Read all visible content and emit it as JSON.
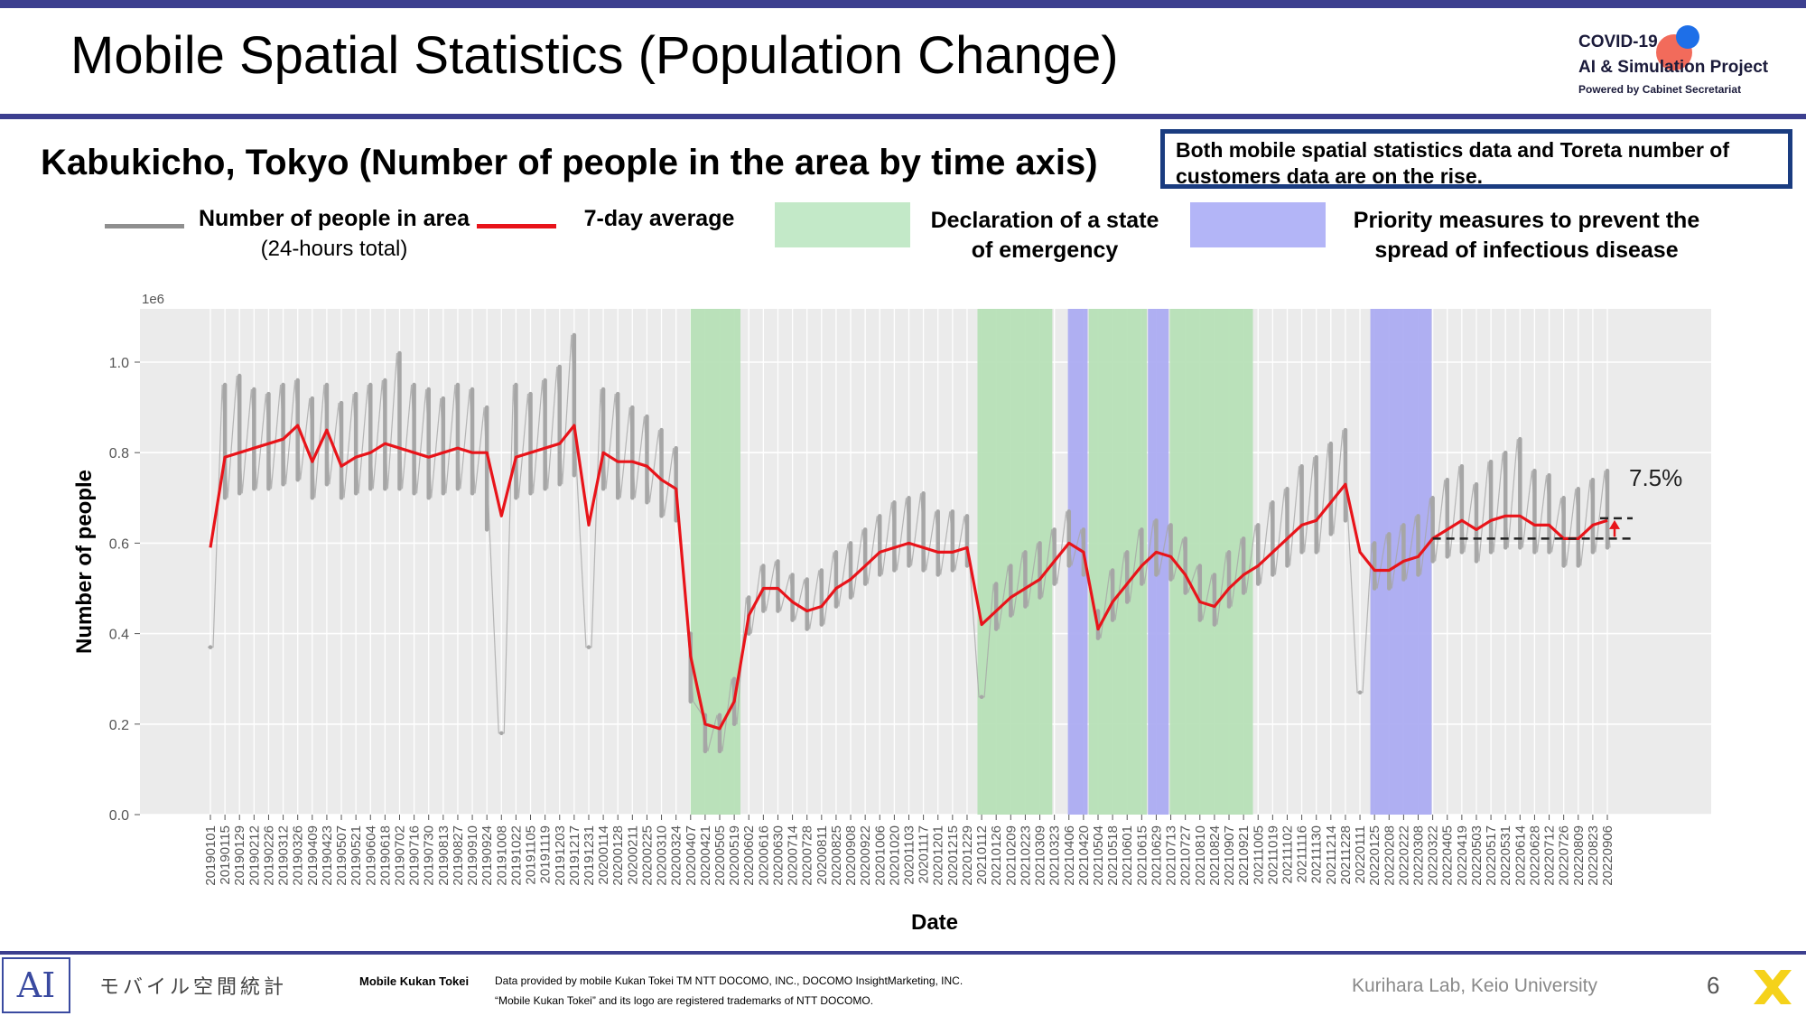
{
  "slide": {
    "title": "Mobile Spatial Statistics (Population Change)",
    "subtitle": "Kabukicho, Tokyo (Number of people in the area by time axis)",
    "callout": "Both mobile spatial statistics data and Toreta number of customers data are on the rise.",
    "page_number": "6",
    "credit": "Kurihara Lab, Keio University"
  },
  "logo": {
    "line1": "COVID-19",
    "line2": "AI & Simulation Project",
    "line3": "Powered by Cabinet Secretariat"
  },
  "legend": {
    "raw_label": "Number of people in area",
    "raw_sub": "(24-hours total)",
    "avg_label": "7-day average",
    "emergency_line1": "Declaration of a state",
    "emergency_line2": "of emergency",
    "priority_line1": "Priority measures to prevent the",
    "priority_line2": "spread of infectious disease"
  },
  "footer": {
    "jp_logo": "モバイル空間統計",
    "brand": "Mobile Kukan Tokei",
    "note1": "Data provided by mobile Kukan Tokei TM NTT DOCOMO, INC., DOCOMO InsightMarketing, INC.",
    "note2": "“Mobile Kukan Tokei” and its logo are registered trademarks of NTT DOCOMO.",
    "ai_mark": "AI"
  },
  "colors": {
    "raw": "#a6a6a6",
    "avg": "#e8141a",
    "emergency": "#b5dfb5",
    "priority": "#a9a9f2",
    "plot_bg": "#ebebeb",
    "accent": "#3c3f8f"
  },
  "chart_data": {
    "type": "line",
    "xlabel": "Date",
    "ylabel": "Number of people",
    "y_multiplier": "1e6",
    "ylim": [
      0,
      1.1
    ],
    "yticks": [
      "0.0",
      "0.2",
      "0.4",
      "0.6",
      "0.8",
      "1.0"
    ],
    "xticks": [
      "20190101",
      "20190115",
      "20190129",
      "20190212",
      "20190226",
      "20190312",
      "20190326",
      "20190409",
      "20190423",
      "20190507",
      "20190521",
      "20190604",
      "20190618",
      "20190702",
      "20190716",
      "20190730",
      "20190813",
      "20190827",
      "20190910",
      "20190924",
      "20191008",
      "20191022",
      "20191105",
      "20191119",
      "20191203",
      "20191217",
      "20191231",
      "20200114",
      "20200128",
      "20200211",
      "20200225",
      "20200310",
      "20200324",
      "20200407",
      "20200421",
      "20200505",
      "20200519",
      "20200602",
      "20200616",
      "20200630",
      "20200714",
      "20200728",
      "20200811",
      "20200825",
      "20200908",
      "20200922",
      "20201006",
      "20201020",
      "20201103",
      "20201117",
      "20201201",
      "20201215",
      "20201229",
      "20210112",
      "20210126",
      "20210209",
      "20210223",
      "20210309",
      "20210323",
      "20210406",
      "20210420",
      "20210504",
      "20210518",
      "20210601",
      "20210615",
      "20210629",
      "20210713",
      "20210727",
      "20210810",
      "20210824",
      "20210907",
      "20210921",
      "20211005",
      "20211019",
      "20211102",
      "20211116",
      "20211130",
      "20211214",
      "20211228",
      "20220111",
      "20220125",
      "20220208",
      "20220222",
      "20220308",
      "20220322",
      "20220405",
      "20220419",
      "20220503",
      "20220517",
      "20220531",
      "20220614",
      "20220628",
      "20220712",
      "20220726",
      "20220809",
      "20220823",
      "20220906"
    ],
    "series": [
      {
        "name": "7-day average",
        "x": [
          "20190101",
          "20190115",
          "20190129",
          "20190212",
          "20190226",
          "20190312",
          "20190326",
          "20190409",
          "20190423",
          "20190507",
          "20190521",
          "20190604",
          "20190618",
          "20190702",
          "20190716",
          "20190730",
          "20190813",
          "20190827",
          "20190910",
          "20190924",
          "20191008",
          "20191022",
          "20191105",
          "20191119",
          "20191203",
          "20191217",
          "20191231",
          "20200114",
          "20200128",
          "20200211",
          "20200225",
          "20200310",
          "20200324",
          "20200407",
          "20200421",
          "20200505",
          "20200519",
          "20200602",
          "20200616",
          "20200630",
          "20200714",
          "20200728",
          "20200811",
          "20200825",
          "20200908",
          "20200922",
          "20201006",
          "20201020",
          "20201103",
          "20201117",
          "20201201",
          "20201215",
          "20201229",
          "20210112",
          "20210126",
          "20210209",
          "20210223",
          "20210309",
          "20210323",
          "20210406",
          "20210420",
          "20210504",
          "20210518",
          "20210601",
          "20210615",
          "20210629",
          "20210713",
          "20210727",
          "20210810",
          "20210824",
          "20210907",
          "20210921",
          "20211005",
          "20211019",
          "20211102",
          "20211116",
          "20211130",
          "20211214",
          "20211228",
          "20220111",
          "20220125",
          "20220208",
          "20220222",
          "20220308",
          "20220322",
          "20220405",
          "20220419",
          "20220503",
          "20220517",
          "20220531",
          "20220614",
          "20220628",
          "20220712",
          "20220726",
          "20220809",
          "20220823",
          "20220906"
        ],
        "values": [
          0.59,
          0.79,
          0.8,
          0.81,
          0.82,
          0.83,
          0.86,
          0.78,
          0.85,
          0.77,
          0.79,
          0.8,
          0.82,
          0.81,
          0.8,
          0.79,
          0.8,
          0.81,
          0.8,
          0.8,
          0.66,
          0.79,
          0.8,
          0.81,
          0.82,
          0.86,
          0.64,
          0.8,
          0.78,
          0.78,
          0.77,
          0.74,
          0.72,
          0.35,
          0.2,
          0.19,
          0.25,
          0.44,
          0.5,
          0.5,
          0.47,
          0.45,
          0.46,
          0.5,
          0.52,
          0.55,
          0.58,
          0.59,
          0.6,
          0.59,
          0.58,
          0.58,
          0.59,
          0.42,
          0.45,
          0.48,
          0.5,
          0.52,
          0.56,
          0.6,
          0.58,
          0.41,
          0.47,
          0.51,
          0.55,
          0.58,
          0.57,
          0.53,
          0.47,
          0.46,
          0.5,
          0.53,
          0.55,
          0.58,
          0.61,
          0.64,
          0.65,
          0.69,
          0.73,
          0.58,
          0.54,
          0.54,
          0.56,
          0.57,
          0.61,
          0.63,
          0.65,
          0.63,
          0.65,
          0.66,
          0.66,
          0.64,
          0.64,
          0.61,
          0.61,
          0.64,
          0.65
        ]
      },
      {
        "name": "Number of people in area",
        "x": [
          "20190101",
          "20190115",
          "20190129",
          "20190212",
          "20190226",
          "20190312",
          "20190326",
          "20190409",
          "20190423",
          "20190507",
          "20190521",
          "20190604",
          "20190618",
          "20190702",
          "20190716",
          "20190730",
          "20190813",
          "20190827",
          "20190910",
          "20190924",
          "20191008",
          "20191022",
          "20191105",
          "20191119",
          "20191203",
          "20191217",
          "20191231",
          "20200114",
          "20200128",
          "20200211",
          "20200225",
          "20200310",
          "20200324",
          "20200407",
          "20200421",
          "20200505",
          "20200519",
          "20200602",
          "20200616",
          "20200630",
          "20200714",
          "20200728",
          "20200811",
          "20200825",
          "20200908",
          "20200922",
          "20201006",
          "20201020",
          "20201103",
          "20201117",
          "20201201",
          "20201215",
          "20201229",
          "20210112",
          "20210126",
          "20210209",
          "20210223",
          "20210309",
          "20210323",
          "20210406",
          "20210420",
          "20210504",
          "20210518",
          "20210601",
          "20210615",
          "20210629",
          "20210713",
          "20210727",
          "20210810",
          "20210824",
          "20210907",
          "20210921",
          "20211005",
          "20211019",
          "20211102",
          "20211116",
          "20211130",
          "20211214",
          "20211228",
          "20220111",
          "20220125",
          "20220208",
          "20220222",
          "20220308",
          "20220322",
          "20220405",
          "20220419",
          "20220503",
          "20220517",
          "20220531",
          "20220614",
          "20220628",
          "20220712",
          "20220726",
          "20220809",
          "20220823",
          "20220906"
        ],
        "high": [
          0.37,
          0.95,
          0.97,
          0.94,
          0.93,
          0.95,
          0.96,
          0.92,
          0.95,
          0.91,
          0.93,
          0.95,
          0.96,
          1.02,
          0.95,
          0.94,
          0.92,
          0.95,
          0.94,
          0.9,
          0.18,
          0.95,
          0.93,
          0.96,
          0.99,
          1.06,
          0.37,
          0.94,
          0.93,
          0.9,
          0.88,
          0.85,
          0.81,
          0.4,
          0.22,
          0.22,
          0.3,
          0.48,
          0.55,
          0.56,
          0.53,
          0.52,
          0.54,
          0.58,
          0.6,
          0.63,
          0.66,
          0.69,
          0.7,
          0.71,
          0.67,
          0.67,
          0.66,
          0.26,
          0.51,
          0.55,
          0.58,
          0.6,
          0.63,
          0.67,
          0.63,
          0.45,
          0.54,
          0.58,
          0.63,
          0.65,
          0.64,
          0.61,
          0.55,
          0.53,
          0.58,
          0.61,
          0.64,
          0.69,
          0.72,
          0.77,
          0.79,
          0.82,
          0.85,
          0.27,
          0.6,
          0.62,
          0.64,
          0.66,
          0.7,
          0.74,
          0.77,
          0.73,
          0.78,
          0.8,
          0.83,
          0.76,
          0.75,
          0.7,
          0.72,
          0.74,
          0.76
        ],
        "low": [
          0.37,
          0.7,
          0.71,
          0.72,
          0.72,
          0.73,
          0.74,
          0.7,
          0.73,
          0.7,
          0.71,
          0.72,
          0.72,
          0.72,
          0.71,
          0.7,
          0.71,
          0.72,
          0.71,
          0.63,
          0.18,
          0.7,
          0.71,
          0.72,
          0.73,
          0.75,
          0.37,
          0.72,
          0.7,
          0.7,
          0.69,
          0.66,
          0.65,
          0.25,
          0.14,
          0.14,
          0.2,
          0.4,
          0.45,
          0.45,
          0.43,
          0.41,
          0.42,
          0.46,
          0.48,
          0.51,
          0.53,
          0.54,
          0.55,
          0.54,
          0.53,
          0.54,
          0.55,
          0.26,
          0.41,
          0.44,
          0.46,
          0.48,
          0.51,
          0.55,
          0.53,
          0.39,
          0.43,
          0.47,
          0.51,
          0.53,
          0.52,
          0.49,
          0.43,
          0.42,
          0.46,
          0.49,
          0.51,
          0.53,
          0.55,
          0.58,
          0.58,
          0.62,
          0.65,
          0.27,
          0.5,
          0.5,
          0.52,
          0.53,
          0.56,
          0.57,
          0.58,
          0.56,
          0.58,
          0.59,
          0.59,
          0.58,
          0.58,
          0.55,
          0.55,
          0.58,
          0.59
        ]
      }
    ],
    "shaded_periods": [
      {
        "type": "emergency",
        "start": "20200407",
        "end": "20200525"
      },
      {
        "type": "emergency",
        "start": "20210108",
        "end": "20210321"
      },
      {
        "type": "priority",
        "start": "20210405",
        "end": "20210424"
      },
      {
        "type": "emergency",
        "start": "20210425",
        "end": "20210620"
      },
      {
        "type": "priority",
        "start": "20210621",
        "end": "20210711"
      },
      {
        "type": "emergency",
        "start": "20210712",
        "end": "20210930"
      },
      {
        "type": "priority",
        "start": "20220121",
        "end": "20220321"
      }
    ],
    "annotation": {
      "text": "7.5%",
      "baseline_value": 0.61,
      "current_value": 0.655,
      "start": "20220322",
      "end": "20220906"
    },
    "grid": true,
    "legend_position": "top"
  }
}
